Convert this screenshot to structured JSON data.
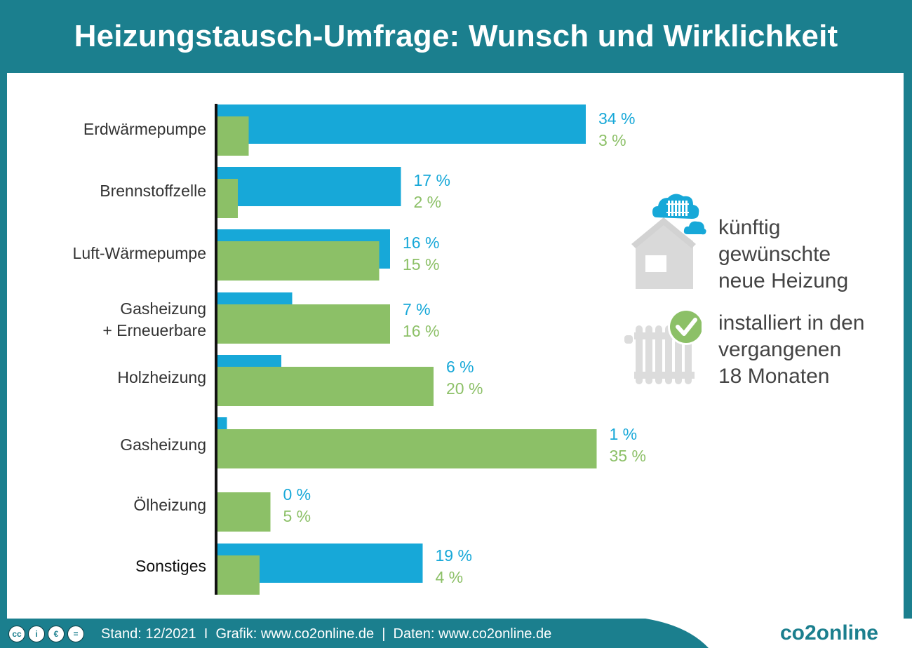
{
  "title": "Heizungstausch-Umfrage: Wunsch und Wirklichkeit",
  "legend": {
    "future_label_lines": [
      "künftig",
      "gewünschte",
      "neue Heizung"
    ],
    "installed_label_lines": [
      "installiert in den",
      "vergangenen",
      "18 Monaten"
    ],
    "house_icon": "house-cloud-radiator-icon",
    "radiator_icon": "radiator-check-icon"
  },
  "colors": {
    "header": "#1b7f8e",
    "blue": "#17a8d8",
    "green": "#8cc067",
    "axis": "#111111"
  },
  "chart_data": {
    "type": "bar",
    "orientation": "horizontal",
    "title": "Heizungstausch-Umfrage: Wunsch und Wirklichkeit",
    "categories": [
      "Erdwärmepumpe",
      "Brennstoffzelle",
      "Luft-Wärmepumpe",
      "Gasheizung\n+ Erneuerbare",
      "Holzheizung",
      "Gasheizung",
      "Ölheizung",
      "Sonstiges"
    ],
    "series": [
      {
        "name": "künftig gewünschte neue Heizung",
        "values": [
          34,
          17,
          16,
          7,
          6,
          1,
          0,
          19
        ],
        "labels": [
          "34 %",
          "17 %",
          "16 %",
          "7 %",
          "6 %",
          "1 %",
          "0 %",
          "19 %"
        ]
      },
      {
        "name": "installiert in den vergangenen 18 Monaten",
        "values": [
          3,
          2,
          15,
          16,
          20,
          35,
          5,
          4
        ],
        "labels": [
          "3 %",
          "2 %",
          "15 %",
          "16 %",
          "20 %",
          "35 %",
          "5 %",
          "4 %"
        ]
      }
    ],
    "unit": "%",
    "xlim": [
      0,
      35
    ]
  },
  "footer": {
    "cc_icons": [
      "cc-icon",
      "by-icon",
      "nc-icon",
      "nd-icon"
    ],
    "text": "Stand: 12/2021  I  Grafik: www.co2online.de  |  Daten: www.co2online.de",
    "brand": "co2online"
  }
}
